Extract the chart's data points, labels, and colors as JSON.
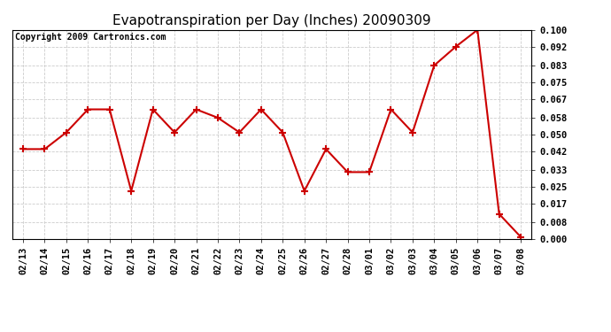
{
  "title": "Evapotranspiration per Day (Inches) 20090309",
  "copyright_text": "Copyright 2009 Cartronics.com",
  "x_labels": [
    "02/13",
    "02/14",
    "02/15",
    "02/16",
    "02/17",
    "02/18",
    "02/19",
    "02/20",
    "02/21",
    "02/22",
    "02/23",
    "02/24",
    "02/25",
    "02/26",
    "02/27",
    "02/28",
    "03/01",
    "03/02",
    "03/03",
    "03/04",
    "03/05",
    "03/06",
    "03/07",
    "03/08"
  ],
  "y_values": [
    0.043,
    0.043,
    0.051,
    0.062,
    0.062,
    0.023,
    0.062,
    0.051,
    0.062,
    0.058,
    0.051,
    0.062,
    0.051,
    0.023,
    0.043,
    0.032,
    0.032,
    0.062,
    0.051,
    0.083,
    0.092,
    0.1,
    0.012,
    0.001
  ],
  "line_color": "#cc0000",
  "marker": "+",
  "marker_size": 6,
  "marker_color": "#cc0000",
  "bg_color": "#ffffff",
  "grid_color": "#cccccc",
  "y_ticks": [
    0.0,
    0.008,
    0.017,
    0.025,
    0.033,
    0.042,
    0.05,
    0.058,
    0.067,
    0.075,
    0.083,
    0.092,
    0.1
  ],
  "ylim": [
    0.0,
    0.1
  ],
  "title_fontsize": 11,
  "copyright_fontsize": 7,
  "tick_fontsize": 7.5
}
